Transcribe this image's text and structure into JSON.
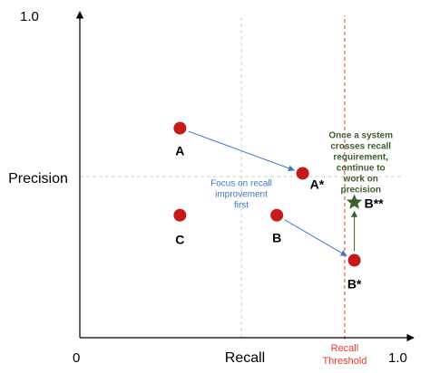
{
  "chart_data": {
    "type": "scatter",
    "title": "",
    "xlabel": "Recall",
    "ylabel": "Precision",
    "xlim": [
      0,
      1
    ],
    "ylim": [
      0,
      1
    ],
    "grid": "dashed midlines at 0.5",
    "x_ticks": [
      "0",
      "1.0"
    ],
    "y_ticks": [
      "1.0"
    ],
    "threshold": {
      "x": 0.82,
      "label_line1": "Recall",
      "label_line2": "Threshold",
      "color": "#e8392f"
    },
    "points": [
      {
        "id": "A",
        "label": "A",
        "x": 0.31,
        "y": 0.65,
        "shape": "circle",
        "color": "#c61a1a"
      },
      {
        "id": "A*",
        "label": "A*",
        "x": 0.69,
        "y": 0.51,
        "shape": "circle",
        "color": "#c61a1a"
      },
      {
        "id": "C",
        "label": "C",
        "x": 0.31,
        "y": 0.38,
        "shape": "circle",
        "color": "#c61a1a"
      },
      {
        "id": "B",
        "label": "B",
        "x": 0.61,
        "y": 0.38,
        "shape": "circle",
        "color": "#c61a1a"
      },
      {
        "id": "B*",
        "label": "B*",
        "x": 0.85,
        "y": 0.24,
        "shape": "circle",
        "color": "#c61a1a"
      },
      {
        "id": "B**",
        "label": "B**",
        "x": 0.85,
        "y": 0.42,
        "shape": "star",
        "color": "#3a5f2a"
      }
    ],
    "arrows": [
      {
        "from": "A",
        "to": "A*",
        "color": "#3f78c8"
      },
      {
        "from": "B",
        "to": "B*",
        "color": "#3f78c8"
      },
      {
        "from": "B*",
        "to": "B**",
        "color": "#3a5f2a"
      }
    ],
    "annotations": [
      {
        "id": "recall-note",
        "lines": [
          "Focus on recall",
          "improvement",
          "first"
        ],
        "color": "#3f78c8",
        "x": 0.5,
        "y": 0.47
      },
      {
        "id": "precision-note",
        "lines": [
          "Once a system",
          "crosses recall",
          "requirement,",
          "continue to",
          "work on",
          "precision"
        ],
        "color": "#3a5f2a",
        "x": 0.87,
        "y": 0.62
      }
    ]
  },
  "colors": {
    "axis": "#000000",
    "grid": "#cfcfcf",
    "point": "#c61a1a",
    "blue_arrow": "#3f78c8",
    "green": "#3a5f2a",
    "threshold": "#e8392f"
  }
}
